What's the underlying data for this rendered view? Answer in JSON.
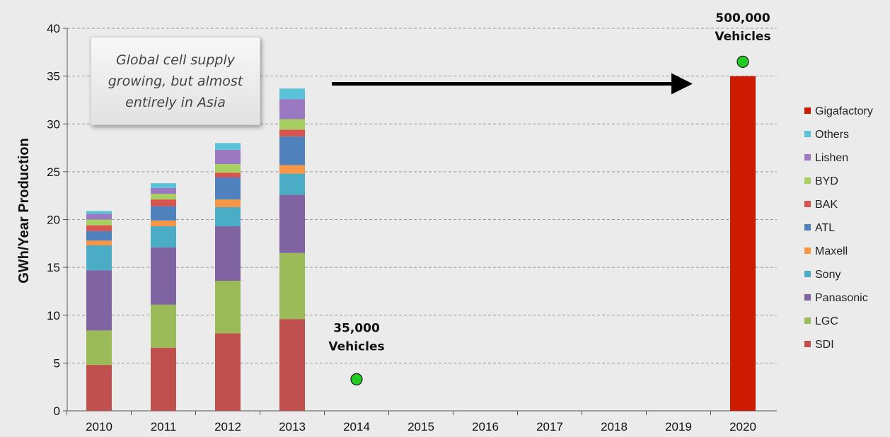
{
  "chart_data": {
    "type": "bar",
    "stacked": true,
    "ylabel": "GWh/Year Production",
    "ylim": [
      0,
      40
    ],
    "yticks": [
      0,
      5,
      10,
      15,
      20,
      25,
      30,
      35,
      40
    ],
    "categories": [
      "2010",
      "2011",
      "2012",
      "2013",
      "2014",
      "2015",
      "2016",
      "2017",
      "2018",
      "2019",
      "2020"
    ],
    "series": [
      {
        "name": "SDI",
        "color": "#c0504d",
        "values": [
          4.8,
          6.6,
          8.1,
          9.6,
          null,
          null,
          null,
          null,
          null,
          null,
          null
        ]
      },
      {
        "name": "LGC",
        "color": "#9bbb59",
        "values": [
          3.6,
          4.5,
          5.5,
          6.9,
          null,
          null,
          null,
          null,
          null,
          null,
          null
        ]
      },
      {
        "name": "Panasonic",
        "color": "#8064a2",
        "values": [
          6.3,
          6.0,
          5.7,
          6.1,
          null,
          null,
          null,
          null,
          null,
          null,
          null
        ]
      },
      {
        "name": "Sony",
        "color": "#4bacc6",
        "values": [
          2.6,
          2.2,
          2.0,
          2.2,
          null,
          null,
          null,
          null,
          null,
          null,
          null
        ]
      },
      {
        "name": "Maxell",
        "color": "#f79646",
        "values": [
          0.5,
          0.6,
          0.8,
          0.9,
          null,
          null,
          null,
          null,
          null,
          null,
          null
        ]
      },
      {
        "name": "ATL",
        "color": "#4f81bd",
        "values": [
          1.0,
          1.5,
          2.3,
          3.0,
          null,
          null,
          null,
          null,
          null,
          null,
          null
        ]
      },
      {
        "name": "BAK",
        "color": "#d9534f",
        "values": [
          0.6,
          0.7,
          0.5,
          0.7,
          null,
          null,
          null,
          null,
          null,
          null,
          null
        ]
      },
      {
        "name": "BYD",
        "color": "#a8cf62",
        "values": [
          0.6,
          0.6,
          0.9,
          1.1,
          null,
          null,
          null,
          null,
          null,
          null,
          null
        ]
      },
      {
        "name": "Lishen",
        "color": "#9a79c2",
        "values": [
          0.6,
          0.6,
          1.5,
          2.1,
          null,
          null,
          null,
          null,
          null,
          null,
          null
        ]
      },
      {
        "name": "Others",
        "color": "#5bc3d8",
        "values": [
          0.3,
          0.5,
          0.7,
          1.1,
          null,
          null,
          null,
          null,
          null,
          null,
          null
        ]
      },
      {
        "name": "Gigafactory",
        "color": "#cc1b00",
        "values": [
          null,
          null,
          null,
          null,
          null,
          null,
          null,
          null,
          null,
          null,
          35
        ]
      }
    ],
    "legend_order": [
      "Gigafactory",
      "Others",
      "Lishen",
      "BYD",
      "BAK",
      "ATL",
      "Maxell",
      "Sony",
      "Panasonic",
      "LGC",
      "SDI"
    ],
    "markers": [
      {
        "category": "2014",
        "y": 3.3,
        "label_line1": "35,000",
        "label_line2": "Vehicles",
        "color": "#22cc22"
      },
      {
        "category": "2020",
        "y": 36.5,
        "label_line1": "500,000",
        "label_line2": "Vehicles",
        "color": "#22cc22"
      }
    ],
    "arrow": {
      "from_category": "2013",
      "to_category": "2019",
      "y": 34.2
    },
    "callout_text": "Global cell supply\ngrowing, but almost\nentirely in Asia",
    "grid": true
  }
}
